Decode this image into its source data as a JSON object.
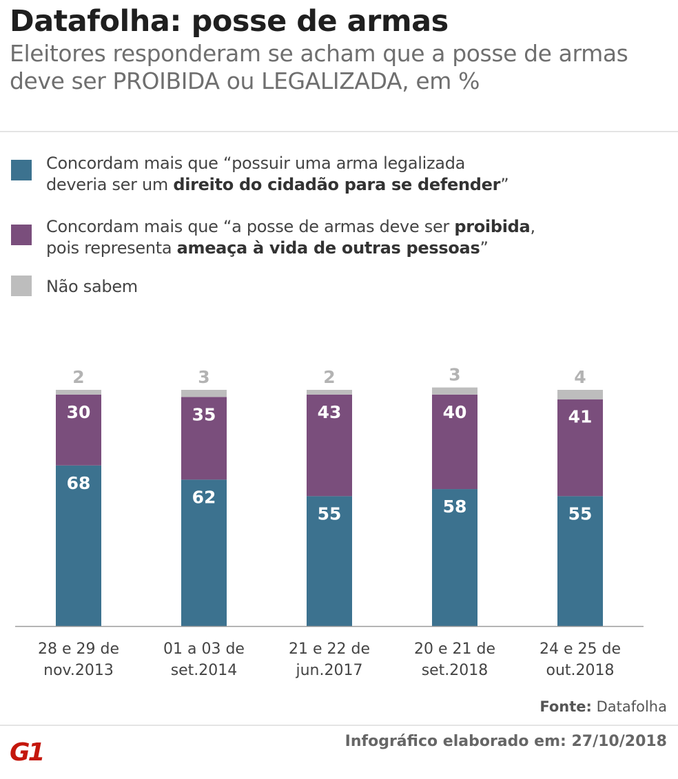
{
  "header": {
    "title": "Datafolha: posse de armas",
    "subtitle": "Eleitores responderam se acham que a posse de armas deve ser PROIBIDA ou LEGALIZADA, em %"
  },
  "legend": [
    {
      "name": "legalizada",
      "color": "#3c728f",
      "line1": "Concordam mais que “possuir uma arma legalizada",
      "line2_plain": "deveria ser um ",
      "line2_bold": "direito do cidadão para se defender",
      "line2_end": "”"
    },
    {
      "name": "proibida",
      "color": "#7a4e7c",
      "line1_plain": "Concordam mais que “a posse de armas deve ser ",
      "line1_bold": "proibida",
      "line1_end": ",",
      "line2_plain": "pois representa ",
      "line2_bold": "ameaça à vida de outras pessoas",
      "line2_end": "”"
    },
    {
      "name": "nao-sabem",
      "color": "#bdbdbd",
      "line1": "Não sabem"
    }
  ],
  "chart_data": {
    "type": "bar",
    "stacked": true,
    "categories": [
      [
        "28 e 29 de",
        "nov.2013"
      ],
      [
        "01 a 03 de",
        "set.2014"
      ],
      [
        "21 e 22 de",
        "jun.2017"
      ],
      [
        "20 e 21 de",
        "set.2018"
      ],
      [
        "24 e 25 de",
        "out.2018"
      ]
    ],
    "series": [
      {
        "name": "Concordam mais que “possuir uma arma legalizada deveria ser um direito do cidadão para se defender”",
        "color": "#3c728f",
        "values": [
          68,
          62,
          55,
          58,
          55
        ]
      },
      {
        "name": "Concordam mais que “a posse de armas deve ser proibida, pois representa ameaça à vida de outras pessoas”",
        "color": "#7a4e7c",
        "values": [
          30,
          35,
          43,
          40,
          41
        ]
      },
      {
        "name": "Não sabem",
        "color": "#bdbdbd",
        "values": [
          2,
          3,
          2,
          3,
          4
        ]
      }
    ],
    "ylim": [
      0,
      100
    ],
    "grid": false,
    "legend_placement": "top"
  },
  "footer": {
    "source_label": "Fonte:",
    "source_value": "Datafolha",
    "logo": "G1",
    "credit": "Infográfico elaborado em: 27/10/2018"
  }
}
